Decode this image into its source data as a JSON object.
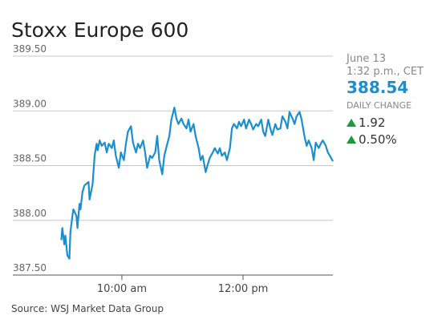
{
  "chart_data": {
    "type": "line",
    "title": "Stoxx Europe 600",
    "color": "#1a8fd0",
    "x": [
      540,
      541,
      543,
      544,
      546,
      548,
      549,
      551,
      552,
      555,
      556,
      558,
      559,
      561,
      563,
      567,
      568,
      571,
      573,
      575,
      576,
      578,
      580,
      583,
      585,
      587,
      590,
      592,
      594,
      597,
      599,
      602,
      604,
      606,
      609,
      611,
      614,
      616,
      618,
      621,
      623,
      625,
      628,
      630,
      633,
      635,
      637,
      640,
      642,
      645,
      647,
      649,
      652,
      654,
      656,
      659,
      661,
      664,
      666,
      668,
      671,
      673,
      676,
      678,
      680,
      683,
      685,
      687,
      690,
      692,
      695,
      697,
      699,
      702,
      704,
      707,
      709,
      711,
      714,
      716,
      718,
      721,
      723,
      726,
      728,
      730,
      733,
      735,
      738,
      740,
      742,
      745,
      747,
      749,
      752,
      754,
      757,
      759,
      762,
      764,
      766,
      769,
      771,
      773,
      776,
      778,
      781,
      783,
      785,
      788,
      790,
      792,
      795,
      797,
      799,
      802,
      804,
      806,
      809
    ],
    "values": [
      387.82,
      387.93,
      387.78,
      387.86,
      387.68,
      387.65,
      387.89,
      388.04,
      388.1,
      388.04,
      387.93,
      388.15,
      388.1,
      388.26,
      388.32,
      388.35,
      388.19,
      388.33,
      388.59,
      388.7,
      388.64,
      388.73,
      388.68,
      388.71,
      388.62,
      388.7,
      388.66,
      388.73,
      388.59,
      388.48,
      388.62,
      388.55,
      388.7,
      388.81,
      388.86,
      388.71,
      388.62,
      388.7,
      388.66,
      388.73,
      388.62,
      388.48,
      388.59,
      388.57,
      388.62,
      388.77,
      388.55,
      388.42,
      388.59,
      388.7,
      388.77,
      388.92,
      389.03,
      388.93,
      388.88,
      388.93,
      388.88,
      388.84,
      388.92,
      388.81,
      388.88,
      388.77,
      388.66,
      388.55,
      388.59,
      388.44,
      388.51,
      388.57,
      388.62,
      388.66,
      388.61,
      388.66,
      388.59,
      388.62,
      388.55,
      388.66,
      388.84,
      388.88,
      388.84,
      388.9,
      388.86,
      388.92,
      388.84,
      388.92,
      388.88,
      388.83,
      388.88,
      388.86,
      388.92,
      388.81,
      388.77,
      388.92,
      388.84,
      388.78,
      388.88,
      388.83,
      388.84,
      388.95,
      388.9,
      388.84,
      388.99,
      388.93,
      388.88,
      388.95,
      388.99,
      388.92,
      388.76,
      388.68,
      388.73,
      388.66,
      388.55,
      388.71,
      388.66,
      388.7,
      388.73,
      388.68,
      388.62,
      388.59,
      388.54
    ],
    "xlim": [
      492,
      809
    ],
    "xticks": [
      {
        "value": 600,
        "label": "10:00 am"
      },
      {
        "value": 720,
        "label": "12:00 pm"
      }
    ],
    "ylim": [
      387.5,
      389.5
    ],
    "yticks": [
      {
        "value": 387.5,
        "label": "387.50"
      },
      {
        "value": 388,
        "label": "388.00"
      },
      {
        "value": 388.5,
        "label": "388.50"
      },
      {
        "value": 389,
        "label": "389.00"
      },
      {
        "value": 389.5,
        "label": "389.50"
      }
    ],
    "grid": true,
    "quote": {
      "date": "June 13",
      "time": "1:32 p.m., CET",
      "last": "388.54",
      "change_heading": "DAILY CHANGE",
      "change": "1.92",
      "change_percent": "0.50%"
    },
    "source": "Source: WSJ Market Data Group"
  }
}
